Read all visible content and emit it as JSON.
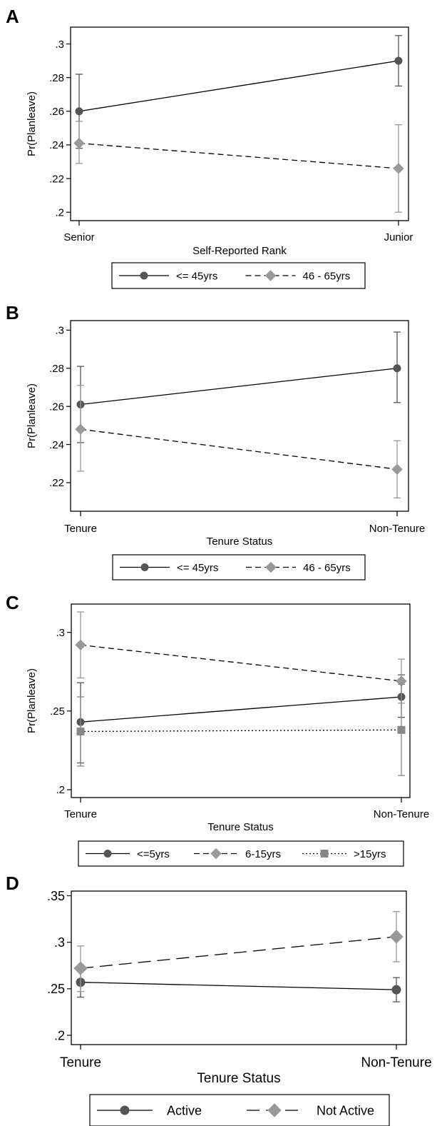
{
  "chart_data": [
    {
      "panel": "A",
      "type": "line",
      "categories": [
        "Senior",
        "Junior"
      ],
      "xlabel": "Self-Reported Rank",
      "ylabel": "Pr(Planleave)",
      "yticks": [
        ".2",
        ".22",
        ".24",
        ".26",
        ".28",
        ".3"
      ],
      "ylim": [
        0.195,
        0.31
      ],
      "legend_position": "bottom",
      "series": [
        {
          "name": "<= 45yrs",
          "values": [
            0.26,
            0.29
          ],
          "ci_low": [
            0.238,
            0.275
          ],
          "ci_high": [
            0.282,
            0.305
          ],
          "color": "#555555",
          "marker": "circle",
          "dash": "solid"
        },
        {
          "name": "46 - 65yrs",
          "values": [
            0.241,
            0.226
          ],
          "ci_low": [
            0.229,
            0.2
          ],
          "ci_high": [
            0.254,
            0.252
          ],
          "color": "#999999",
          "marker": "diamond",
          "dash": "dashed"
        }
      ]
    },
    {
      "panel": "B",
      "type": "line",
      "categories": [
        "Tenure",
        "Non-Tenure"
      ],
      "xlabel": "Tenure Status",
      "ylabel": "Pr(Planleave)",
      "yticks": [
        ".22",
        ".24",
        ".26",
        ".28",
        ".3"
      ],
      "ylim": [
        0.205,
        0.305
      ],
      "legend_position": "bottom",
      "series": [
        {
          "name": "<= 45yrs",
          "values": [
            0.261,
            0.28
          ],
          "ci_low": [
            0.241,
            0.262
          ],
          "ci_high": [
            0.281,
            0.299
          ],
          "color": "#555555",
          "marker": "circle",
          "dash": "solid"
        },
        {
          "name": "46 - 65yrs",
          "values": [
            0.248,
            0.227
          ],
          "ci_low": [
            0.226,
            0.212
          ],
          "ci_high": [
            0.271,
            0.242
          ],
          "color": "#999999",
          "marker": "diamond",
          "dash": "dashed"
        }
      ]
    },
    {
      "panel": "C",
      "type": "line",
      "categories": [
        "Tenure",
        "Non-Tenure"
      ],
      "xlabel": "Tenure Status",
      "ylabel": "Pr(Planleave)",
      "yticks": [
        ".2",
        ".25",
        ".3"
      ],
      "ylim": [
        0.195,
        0.318
      ],
      "legend_position": "bottom",
      "series": [
        {
          "name": "<=5yrs",
          "values": [
            0.243,
            0.259
          ],
          "ci_low": [
            0.217,
            0.246
          ],
          "ci_high": [
            0.268,
            0.273
          ],
          "color": "#555555",
          "marker": "circle",
          "dash": "solid"
        },
        {
          "name": "6-15yrs",
          "values": [
            0.292,
            0.269
          ],
          "ci_low": [
            0.271,
            0.255
          ],
          "ci_high": [
            0.313,
            0.283
          ],
          "color": "#999999",
          "marker": "diamond",
          "dash": "dashed"
        },
        {
          "name": ">15yrs",
          "values": [
            0.237,
            0.238
          ],
          "ci_low": [
            0.215,
            0.209
          ],
          "ci_high": [
            0.259,
            0.267
          ],
          "color": "#888888",
          "marker": "square",
          "dash": "dotted"
        }
      ]
    },
    {
      "panel": "D",
      "type": "line",
      "categories": [
        "Tenure",
        "Non-Tenure"
      ],
      "xlabel": "Tenure Status",
      "ylabel": "",
      "yticks": [
        ".2",
        ".25",
        ".3",
        ".35"
      ],
      "ylim": [
        0.19,
        0.355
      ],
      "legend_position": "bottom",
      "series": [
        {
          "name": "Active",
          "values": [
            0.257,
            0.249
          ],
          "ci_low": [
            0.241,
            0.236
          ],
          "ci_high": [
            0.272,
            0.262
          ],
          "color": "#555555",
          "marker": "circle",
          "dash": "solid"
        },
        {
          "name": "Not Active",
          "values": [
            0.272,
            0.306
          ],
          "ci_low": [
            0.247,
            0.279
          ],
          "ci_high": [
            0.296,
            0.333
          ],
          "color": "#999999",
          "marker": "diamond",
          "dash": "longdash"
        }
      ]
    }
  ]
}
